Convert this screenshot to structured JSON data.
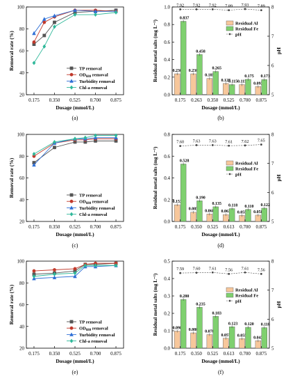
{
  "figure": {
    "panel_labels": [
      "(a)",
      "(b)",
      "(c)",
      "(d)",
      "(e)",
      "(f)"
    ]
  },
  "colors": {
    "tp": "#555555",
    "od": "#c0392b",
    "turb": "#2e6fd6",
    "chl": "#2fb89a",
    "al_bar": "#f7c79b",
    "fe_bar": "#7fd06f",
    "ph": "#444444"
  },
  "chart_data": [
    {
      "id": "a",
      "type": "line",
      "panel_label": "(a)",
      "xlabel": "Dosage (mmol/L)",
      "ylabel": "Removal rate (%)",
      "ylim": [
        20,
        100
      ],
      "yticks": [
        20,
        40,
        60,
        80,
        100
      ],
      "categories": [
        "0.175",
        "0.350",
        "0.525",
        "0.700",
        "0.875"
      ],
      "x": [
        0.175,
        0.263,
        0.35,
        0.525,
        0.7,
        0.875
      ],
      "legend": {
        "position": "lower-right"
      },
      "series": [
        {
          "name": "TP removal",
          "key": "tp",
          "marker": "square",
          "values": [
            66,
            74,
            86,
            95,
            96,
            97
          ]
        },
        {
          "name": "OD removal",
          "sub": "680",
          "key": "od",
          "marker": "circle",
          "values": [
            68,
            86,
            91,
            97,
            97,
            96
          ]
        },
        {
          "name": "Turbidity removal",
          "key": "turb",
          "marker": "triangle",
          "values": [
            76,
            89,
            92,
            97,
            96,
            96
          ]
        },
        {
          "name": "Chl-a removal",
          "key": "chl",
          "marker": "diamond",
          "values": [
            49,
            64,
            82,
            93,
            93,
            95
          ]
        }
      ]
    },
    {
      "id": "b",
      "type": "bar",
      "panel_label": "(b)",
      "xlabel": "Dosage (mmol/L)",
      "ylabel": "Residual metal salts (mg L⁻¹)",
      "y2label": "pH",
      "ylim": [
        0,
        1.0
      ],
      "yticks": [
        "0.0",
        "0.2",
        "0.4",
        "0.6",
        "0.8",
        "1.0"
      ],
      "y2lim": [
        5,
        8
      ],
      "y2ticks": [
        "5",
        "6",
        "7",
        "8"
      ],
      "categories": [
        "0.175",
        "0.263",
        "0.350",
        "0.525",
        "0.700",
        "0.875"
      ],
      "legend": {
        "position": "upper-right"
      },
      "series": [
        {
          "name": "Residual Al",
          "key": "al_bar",
          "values": [
            0.238,
            0.238,
            0.185,
            0.128,
            0.115,
            0.093
          ],
          "labels": [
            "0.238",
            "0.238",
            "0.185",
            "0.128",
            "0.115",
            "0.093"
          ]
        },
        {
          "name": "Residual Fe",
          "key": "fe_bar",
          "values": [
            0.837,
            0.458,
            0.265,
            0.115,
            0.175,
            0.173
          ],
          "labels": [
            "0.837",
            "0.458",
            "0.265",
            "0.115",
            "0.175",
            "0.173"
          ]
        }
      ],
      "ph": {
        "name": "pH",
        "values": [
          7.92,
          7.92,
          7.92,
          7.89,
          7.93,
          7.89
        ],
        "labels": [
          "7.92",
          "7.92",
          "7.92",
          "7.89",
          "7.93",
          "7.89"
        ]
      }
    },
    {
      "id": "c",
      "type": "line",
      "panel_label": "(c)",
      "xlabel": "Dosage (mmol/L)",
      "ylabel": "Removal rate (%)",
      "ylim": [
        20,
        100
      ],
      "yticks": [
        20,
        40,
        60,
        80,
        100
      ],
      "categories": [
        "0.175",
        "0.350",
        "0.525",
        "0.700",
        "0.875"
      ],
      "x": [
        0.175,
        0.35,
        0.525,
        0.613,
        0.7,
        0.875
      ],
      "legend": {
        "position": "lower-right"
      },
      "series": [
        {
          "name": "TP removal",
          "key": "tp",
          "marker": "square",
          "values": [
            74,
            88,
            93,
            93,
            94,
            94
          ]
        },
        {
          "name": "OD removal",
          "sub": "680",
          "key": "od",
          "marker": "circle",
          "values": [
            80,
            92,
            95,
            95,
            96,
            96
          ]
        },
        {
          "name": "Turbidity removal",
          "key": "turb",
          "marker": "triangle",
          "values": [
            72,
            92,
            96,
            96,
            97,
            97
          ]
        },
        {
          "name": "Chl-a removal",
          "key": "chl",
          "marker": "diamond",
          "values": [
            82,
            93,
            96,
            97,
            99,
            99
          ]
        }
      ]
    },
    {
      "id": "d",
      "type": "bar",
      "panel_label": "(d)",
      "xlabel": "Dosage (mmol/L)",
      "ylabel": "Residual metal salts (mg L⁻¹)",
      "y2label": "pH",
      "ylim": [
        0,
        0.8
      ],
      "yticks": [
        "0.0",
        "0.2",
        "0.4",
        "0.6",
        "0.8"
      ],
      "y2lim": [
        5,
        8
      ],
      "y2ticks": [
        "5",
        "6",
        "7",
        "8"
      ],
      "categories": [
        "0.175",
        "0.350",
        "0.525",
        "0.613",
        "0.700",
        "0.875"
      ],
      "legend": {
        "position": "middle-right"
      },
      "series": [
        {
          "name": "Residual Al",
          "key": "al_bar",
          "values": [
            0.153,
            0.085,
            0.068,
            0.063,
            0.055,
            0.058
          ],
          "labels": [
            "0.153",
            "0.085",
            "0.068",
            "0.063",
            "0.055",
            "0.058"
          ]
        },
        {
          "name": "Residual Fe",
          "key": "fe_bar",
          "values": [
            0.528,
            0.19,
            0.135,
            0.118,
            0.11,
            0.122
          ],
          "labels": [
            "0.528",
            "0.190",
            "0.135",
            "0.118",
            "0.110",
            "0.122"
          ]
        }
      ],
      "ph": {
        "name": "pH",
        "values": [
          7.6,
          7.63,
          7.63,
          7.61,
          7.62,
          7.65
        ],
        "labels": [
          "7.60",
          "7.63",
          "7.63",
          "7.61",
          "7.62",
          "7.65"
        ]
      }
    },
    {
      "id": "e",
      "type": "line",
      "panel_label": "(e)",
      "xlabel": "Dosage (mmol/L)",
      "ylabel": "Removal rate (%)",
      "ylim": [
        20,
        100
      ],
      "yticks": [
        20,
        40,
        60,
        80,
        100
      ],
      "categories": [
        "0.175",
        "0.350",
        "0.525",
        "0.700",
        "0.875"
      ],
      "x": [
        0.175,
        0.35,
        0.525,
        0.613,
        0.7,
        0.875
      ],
      "legend": {
        "position": "lower-right"
      },
      "series": [
        {
          "name": "TP removal",
          "key": "tp",
          "marker": "square",
          "values": [
            88,
            89,
            91,
            97,
            97,
            98
          ]
        },
        {
          "name": "OD removal",
          "sub": "680",
          "key": "od",
          "marker": "circle",
          "values": [
            91,
            92,
            93,
            97,
            98,
            98
          ]
        },
        {
          "name": "Turbidity removal",
          "key": "turb",
          "marker": "triangle",
          "values": [
            84,
            85,
            86,
            95,
            95,
            96
          ]
        },
        {
          "name": "Chl-a removal",
          "key": "chl",
          "marker": "diamond",
          "values": [
            86,
            88,
            89,
            96,
            96,
            96
          ]
        }
      ]
    },
    {
      "id": "f",
      "type": "bar",
      "panel_label": "(f)",
      "xlabel": "Dosage (mmol/L)",
      "ylabel": "Residual metal salts (mg L⁻¹)",
      "y2label": "pH",
      "ylim": [
        0,
        0.5
      ],
      "yticks": [
        "0.0",
        "0.1",
        "0.2",
        "0.3",
        "0.4",
        "0.5"
      ],
      "y2lim": [
        5,
        8
      ],
      "y2ticks": [
        "5",
        "6",
        "7",
        "8"
      ],
      "categories": [
        "0.175",
        "0.350",
        "0.525",
        "0.613",
        "0.700",
        "0.875"
      ],
      "legend": {
        "position": "middle-right"
      },
      "series": [
        {
          "name": "Residual Al",
          "key": "al_bar",
          "values": [
            0.098,
            0.088,
            0.078,
            0.057,
            0.055,
            0.043
          ],
          "labels": [
            "0.098",
            "0.088",
            "0.078",
            "0.057",
            "0.055",
            "0.043"
          ]
        },
        {
          "name": "Residual Fe",
          "key": "fe_bar",
          "values": [
            0.28,
            0.235,
            0.183,
            0.123,
            0.12,
            0.118
          ],
          "labels": [
            "0.280",
            "0.235",
            "0.183",
            "0.123",
            "0.120",
            "0.118"
          ]
        }
      ],
      "ph": {
        "name": "pH",
        "values": [
          7.59,
          7.6,
          7.61,
          7.56,
          7.61,
          7.56
        ],
        "labels": [
          "7.59",
          "7.60",
          "7.61",
          "7.56",
          "7.61",
          "7.56"
        ]
      }
    }
  ]
}
